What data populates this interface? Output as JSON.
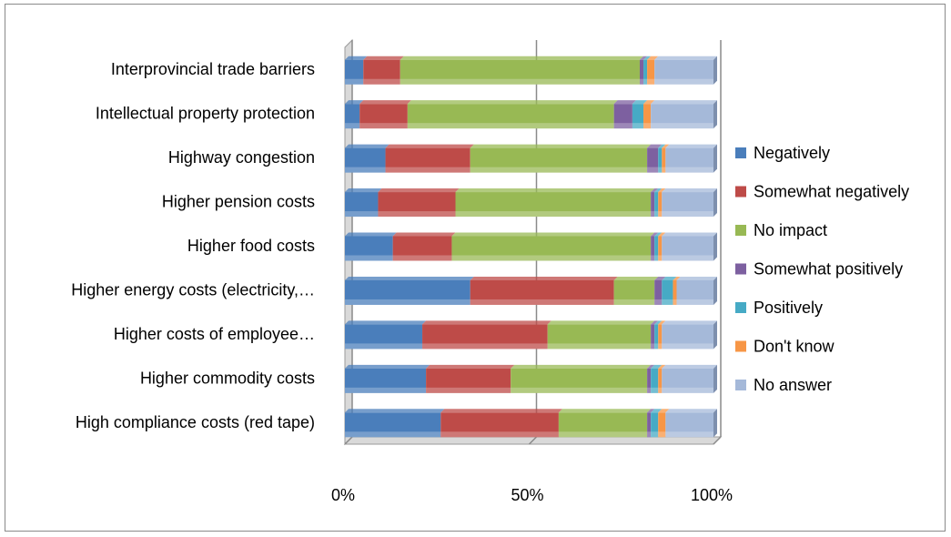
{
  "chart_data": {
    "type": "bar",
    "orientation": "horizontal",
    "stacked": "percent",
    "three_d": true,
    "categories": [
      "Interprovincial trade barriers",
      "Intellectual property protection",
      "Highway congestion",
      "Higher pension costs",
      "Higher food costs",
      "Higher energy costs (electricity,…",
      "Higher costs of employee…",
      "Higher commodity  costs",
      "High compliance costs (red tape)"
    ],
    "series": [
      {
        "name": "Negatively",
        "color": "#4a7ebb",
        "values": [
          5,
          4,
          11,
          9,
          13,
          34,
          21,
          22,
          26
        ]
      },
      {
        "name": "Somewhat negatively",
        "color": "#be4b48",
        "values": [
          10,
          13,
          23,
          21,
          16,
          39,
          34,
          23,
          32
        ]
      },
      {
        "name": "No impact",
        "color": "#98b954",
        "values": [
          65,
          56,
          48,
          53,
          54,
          11,
          28,
          37,
          24
        ]
      },
      {
        "name": "Somewhat positively",
        "color": "#7d60a0",
        "values": [
          1,
          5,
          3,
          1,
          1,
          2,
          1,
          1,
          1
        ]
      },
      {
        "name": "Positively",
        "color": "#46aac5",
        "values": [
          1,
          3,
          1,
          1,
          1,
          3,
          1,
          2,
          2
        ]
      },
      {
        "name": "Don't know",
        "color": "#f79646",
        "values": [
          2,
          2,
          1,
          1,
          1,
          1,
          1,
          1,
          2
        ]
      },
      {
        "name": "No answer",
        "color": "#a5b9d9",
        "values": [
          16,
          17,
          13,
          14,
          14,
          10,
          14,
          14,
          13
        ]
      }
    ],
    "x_ticks": [
      "0%",
      "50%",
      "100%"
    ],
    "xlim": [
      0,
      100
    ],
    "legend_position": "right",
    "grid": true
  }
}
